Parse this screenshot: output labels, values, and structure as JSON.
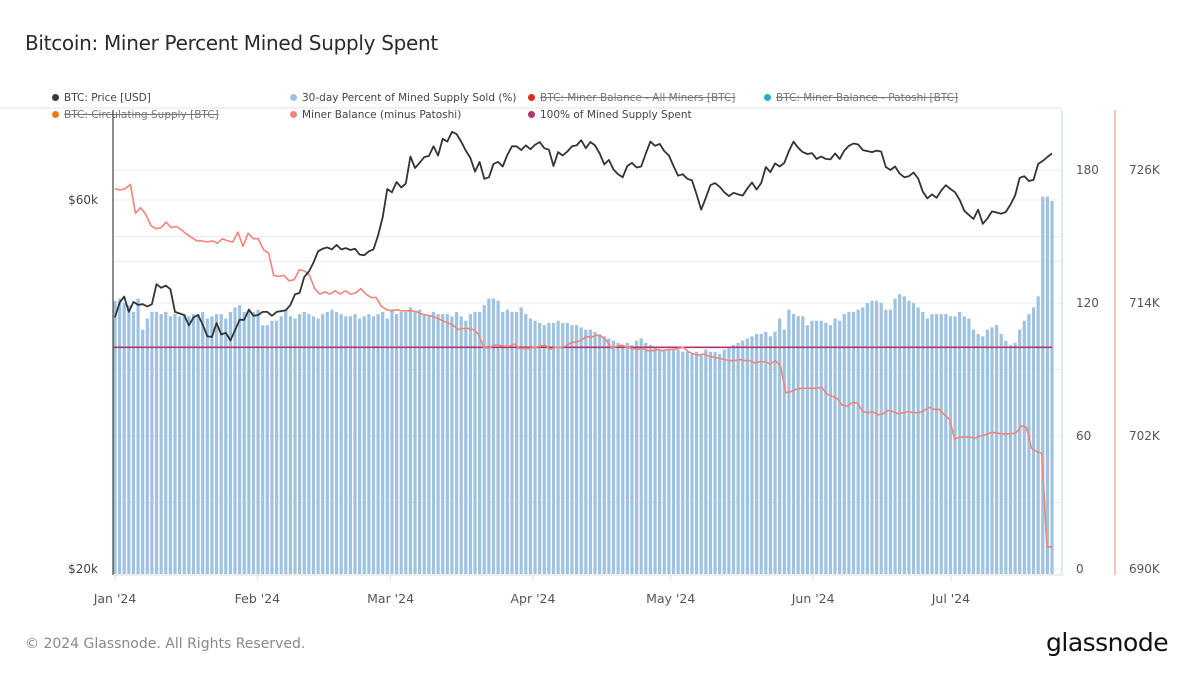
{
  "title": "Bitcoin: Miner Percent Mined Supply Spent",
  "legend": [
    {
      "label": "BTC: Price [USD]",
      "color": "#3a3a3a",
      "active": true
    },
    {
      "label": "30-day Percent of Mined Supply Sold (%)",
      "color": "#9ec3e2",
      "active": true
    },
    {
      "label": "BTC: Miner Balance - All Miners [BTC]",
      "color": "#e0281e",
      "active": false
    },
    {
      "label": "BTC: Miner Balance - Patoshi [BTC]",
      "color": "#1fb0c8",
      "active": false
    },
    {
      "label": "BTC: Circulating Supply [BTC]",
      "color": "#f07a1a",
      "active": false
    },
    {
      "label": "Miner Balance (minus Patoshi)",
      "color": "#f0857a",
      "active": true
    },
    {
      "label": "100% of Mined Supply Spent",
      "color": "#b0346a",
      "active": true
    }
  ],
  "footer": "© 2024 Glassnode. All Rights Reserved.",
  "logo": "glassnode",
  "chart_data": {
    "type": "bar",
    "title": "Bitcoin: Miner Percent Mined Supply Spent",
    "x_ticks": [
      "Jan '24",
      "Feb '24",
      "Mar '24",
      "Apr '24",
      "May '24",
      "Jun '24",
      "Jul '24"
    ],
    "x_tick_days": [
      0,
      31,
      60,
      91,
      121,
      152,
      182
    ],
    "x_range_days": [
      0,
      204
    ],
    "axes": {
      "price": {
        "label": "BTC: Price [USD]",
        "scale": "log",
        "ticks": [
          "$20k",
          "$60k"
        ],
        "tick_values": [
          20000,
          60000
        ],
        "range": [
          20000,
          60000
        ]
      },
      "percent": {
        "label": "30-day Percent of Mined Supply Sold (%)",
        "ticks": [
          "0",
          "60",
          "120",
          "180"
        ],
        "tick_values": [
          0,
          60,
          120,
          180
        ],
        "range": [
          0,
          180
        ]
      },
      "balance": {
        "label": "Miner Balance (minus Patoshi)",
        "ticks": [
          "690K",
          "702K",
          "714K",
          "726K"
        ],
        "tick_values": [
          690000,
          702000,
          714000,
          726000
        ],
        "range": [
          690000,
          726000
        ]
      }
    },
    "grid": true,
    "legend_position": "top",
    "reference_line": {
      "name": "100% of Mined Supply Spent",
      "value": 100
    },
    "series": [
      {
        "name": "30-day Percent of Mined Supply Sold (%)",
        "type": "bar",
        "axis": "percent",
        "values": [
          121,
          122,
          120,
          119,
          116,
          122,
          108,
          113,
          116,
          116,
          115,
          116,
          114,
          115,
          114,
          115,
          114,
          115,
          115,
          116,
          113,
          114,
          115,
          115,
          113,
          116,
          118,
          119,
          116,
          117,
          116,
          117,
          110,
          110,
          112,
          112,
          114,
          117,
          114,
          113,
          115,
          116,
          115,
          114,
          113,
          115,
          116,
          117,
          116,
          115,
          114,
          114,
          115,
          113,
          114,
          115,
          114,
          115,
          116,
          113,
          117,
          115,
          116,
          116,
          118,
          116,
          117,
          115,
          114,
          116,
          115,
          115,
          115,
          114,
          116,
          114,
          112,
          115,
          116,
          116,
          119,
          122,
          122,
          121,
          116,
          117,
          116,
          116,
          118,
          115,
          113,
          112,
          111,
          110,
          111,
          111,
          112,
          111,
          111,
          110,
          110,
          109,
          108,
          108,
          107,
          106,
          105,
          104,
          103,
          102,
          101,
          102,
          101,
          103,
          104,
          102,
          101,
          100,
          99,
          99,
          99,
          99,
          99,
          98,
          98,
          97,
          98,
          97,
          99,
          98,
          98,
          97,
          99,
          100,
          101,
          102,
          103,
          104,
          105,
          106,
          106,
          107,
          105,
          107,
          113,
          108,
          117,
          115,
          114,
          114,
          110,
          112,
          112,
          112,
          111,
          110,
          113,
          112,
          115,
          116,
          116,
          117,
          118,
          120,
          121,
          121,
          120,
          117,
          117,
          122,
          124,
          123,
          121,
          120,
          118,
          116,
          113,
          115,
          115,
          115,
          115,
          114,
          114,
          116,
          114,
          113,
          108,
          106,
          105,
          108,
          109,
          110,
          106,
          103,
          101,
          102,
          108,
          112,
          115,
          118,
          123,
          168,
          168,
          166
        ],
        "note": "~2 bars/day-width; values read visually, approximate"
      },
      {
        "name": "BTC: Price [USD]",
        "type": "line",
        "axis": "price",
        "values": [
          42300,
          44200,
          45000,
          43000,
          44300,
          43900,
          44000,
          43700,
          44000,
          46700,
          46200,
          46500,
          46000,
          43000,
          42800,
          42600,
          41300,
          42300,
          42600,
          41400,
          40000,
          39900,
          41600,
          40200,
          40400,
          39500,
          40700,
          42000,
          42000,
          43300,
          42500,
          42600,
          43000,
          43000,
          42500,
          43000,
          43100,
          43200,
          43900,
          45300,
          45500,
          47700,
          48500,
          49800,
          51500,
          51900,
          52100,
          51800,
          52500,
          51800,
          52000,
          51700,
          51900,
          51000,
          50900,
          51500,
          51800,
          54000,
          57000,
          62000,
          61400,
          63300,
          62300,
          63000,
          68300,
          66000,
          67000,
          68200,
          68400,
          70400,
          68500,
          72000,
          71400,
          73500,
          73000,
          71400,
          69500,
          68000,
          65300,
          67200,
          63900,
          64200,
          66800,
          67200,
          66300,
          68600,
          70400,
          70400,
          69600,
          70600,
          69800,
          70700,
          71300,
          70000,
          69700,
          66400,
          69200,
          68500,
          69300,
          70400,
          70600,
          71700,
          70000,
          71300,
          70600,
          68900,
          66700,
          67600,
          65700,
          64800,
          64200,
          66400,
          67000,
          66100,
          66300,
          68900,
          71400,
          70500,
          70900,
          69400,
          68500,
          66400,
          64500,
          64800,
          63900,
          63600,
          61000,
          58300,
          60400,
          62700,
          63100,
          62400,
          61400,
          60700,
          61300,
          61000,
          60800,
          62100,
          63200,
          61900,
          63100,
          66200,
          65200,
          66900,
          66300,
          67000,
          69400,
          71400,
          70100,
          69200,
          68800,
          69000,
          67800,
          68300,
          67800,
          67700,
          68900,
          67800,
          69500,
          70500,
          71000,
          70800,
          69600,
          69400,
          69200,
          69500,
          69300,
          66200,
          65600,
          66300,
          64900,
          64200,
          64400,
          65100,
          64000,
          61500,
          60300,
          61000,
          60400,
          61700,
          62700,
          62000,
          61400,
          60000,
          58100,
          57400,
          56700,
          58300,
          55900,
          56800,
          58000,
          57800,
          57600,
          57900,
          59200,
          60800,
          64100,
          64400,
          63500,
          63700,
          66800,
          67400,
          68200,
          68900
        ],
        "note": "values read visually, approximate"
      },
      {
        "name": "Miner Balance (minus Patoshi)",
        "type": "line",
        "axis": "balance",
        "values": [
          724300,
          724200,
          724300,
          724700,
          722100,
          722600,
          722000,
          721000,
          720700,
          720800,
          721300,
          720800,
          720900,
          720600,
          720200,
          719900,
          719600,
          719600,
          719500,
          719600,
          719400,
          719800,
          719600,
          719500,
          720400,
          719100,
          720300,
          719800,
          719800,
          718800,
          718500,
          716500,
          716400,
          716500,
          716000,
          716100,
          717000,
          716900,
          716500,
          715300,
          714800,
          715000,
          714800,
          715100,
          714800,
          715100,
          714800,
          714900,
          715300,
          714800,
          714500,
          714500,
          713700,
          713400,
          713300,
          713400,
          713300,
          713300,
          713300,
          713200,
          713000,
          712900,
          712800,
          712600,
          712400,
          712200,
          712000,
          711600,
          711700,
          711700,
          711600,
          711200,
          710000,
          709900,
          710200,
          710200,
          710100,
          710100,
          710300,
          709900,
          709900,
          709900,
          710000,
          710100,
          710200,
          709800,
          710000,
          710000,
          710100,
          710400,
          710500,
          710600,
          711000,
          710900,
          711100,
          711000,
          710600,
          709900,
          710100,
          710200,
          710000,
          709900,
          709800,
          709900,
          709700,
          709700,
          709800,
          709700,
          709800,
          709800,
          709900,
          710000,
          709600,
          709400,
          709300,
          709400,
          709200,
          709100,
          709000,
          708900,
          708800,
          708800,
          708900,
          708800,
          708800,
          708600,
          708700,
          708700,
          708500,
          708800,
          708300,
          705900,
          706000,
          706200,
          706300,
          706300,
          706300,
          706300,
          706400,
          705800,
          705600,
          705400,
          704800,
          704700,
          705000,
          705000,
          704200,
          704100,
          704200,
          703900,
          704000,
          704300,
          704200,
          704000,
          704100,
          704200,
          704100,
          704100,
          704300,
          704600,
          704400,
          704400,
          703900,
          703500,
          701700,
          701900,
          701900,
          701900,
          701800,
          702000,
          702100,
          702300,
          702300,
          702200,
          702200,
          702200,
          702300,
          702900,
          702800,
          700900,
          700600,
          700400,
          692000,
          692000
        ],
        "note": "values read visually, approximate"
      }
    ]
  }
}
